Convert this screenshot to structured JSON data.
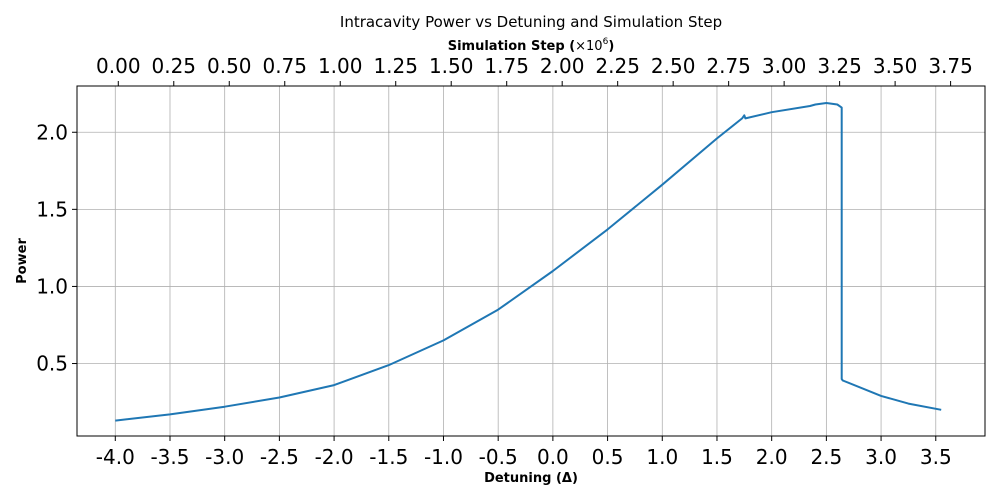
{
  "chart_data": {
    "type": "line",
    "title": "Intracavity Power vs Detuning and Simulation Step",
    "xlabel": "Detuning (Δ)",
    "ylabel": "Power",
    "top_xlabel_main": "Simulation Step (",
    "top_xlabel_times": "×10",
    "top_xlabel_exp": "6",
    "top_xlabel_close": ")",
    "xlim": [
      -4.35,
      3.95
    ],
    "ylim": [
      0.03,
      2.3
    ],
    "x_ticks": [
      -4.0,
      -3.5,
      -3.0,
      -2.5,
      -2.0,
      -1.5,
      -1.0,
      -0.5,
      0.0,
      0.5,
      1.0,
      1.5,
      2.0,
      2.5,
      3.0,
      3.5
    ],
    "x_tick_labels": [
      "-4.0",
      "-3.5",
      "-3.0",
      "-2.5",
      "-2.0",
      "-1.5",
      "-1.0",
      "-0.5",
      "0.0",
      "0.5",
      "1.0",
      "1.5",
      "2.0",
      "2.5",
      "3.0",
      "3.5"
    ],
    "y_ticks": [
      0.5,
      1.0,
      1.5,
      2.0
    ],
    "y_tick_labels": [
      "0.5",
      "1.0",
      "1.5",
      "2.0"
    ],
    "top_x_ticks": [
      0.0,
      0.25,
      0.5,
      0.75,
      1.0,
      1.25,
      1.5,
      1.75,
      2.0,
      2.25,
      2.5,
      2.75,
      3.0,
      3.25,
      3.5,
      3.75
    ],
    "top_x_tick_labels": [
      "0.00",
      "0.25",
      "0.50",
      "0.75",
      "1.00",
      "1.25",
      "1.50",
      "1.75",
      "2.00",
      "2.25",
      "2.50",
      "2.75",
      "3.00",
      "3.25",
      "3.50",
      "3.75"
    ],
    "top_xlim": [
      -0.186,
      3.905
    ],
    "grid": true,
    "color": "#1f77b4",
    "series": [
      {
        "x": [
          -4.0,
          -3.5,
          -3.0,
          -2.5,
          -2.0,
          -1.5,
          -1.0,
          -0.5,
          0.0,
          0.5,
          1.0,
          1.5,
          1.73,
          1.75,
          1.76,
          2.0,
          2.35,
          2.4,
          2.5,
          2.6,
          2.64,
          2.64,
          2.65,
          3.0,
          3.25,
          3.55
        ],
        "y": [
          0.13,
          0.17,
          0.22,
          0.28,
          0.36,
          0.49,
          0.65,
          0.85,
          1.1,
          1.37,
          1.66,
          1.96,
          2.09,
          2.11,
          2.09,
          2.13,
          2.17,
          2.18,
          2.19,
          2.18,
          2.16,
          0.4,
          0.39,
          0.29,
          0.24,
          0.2
        ]
      }
    ]
  }
}
